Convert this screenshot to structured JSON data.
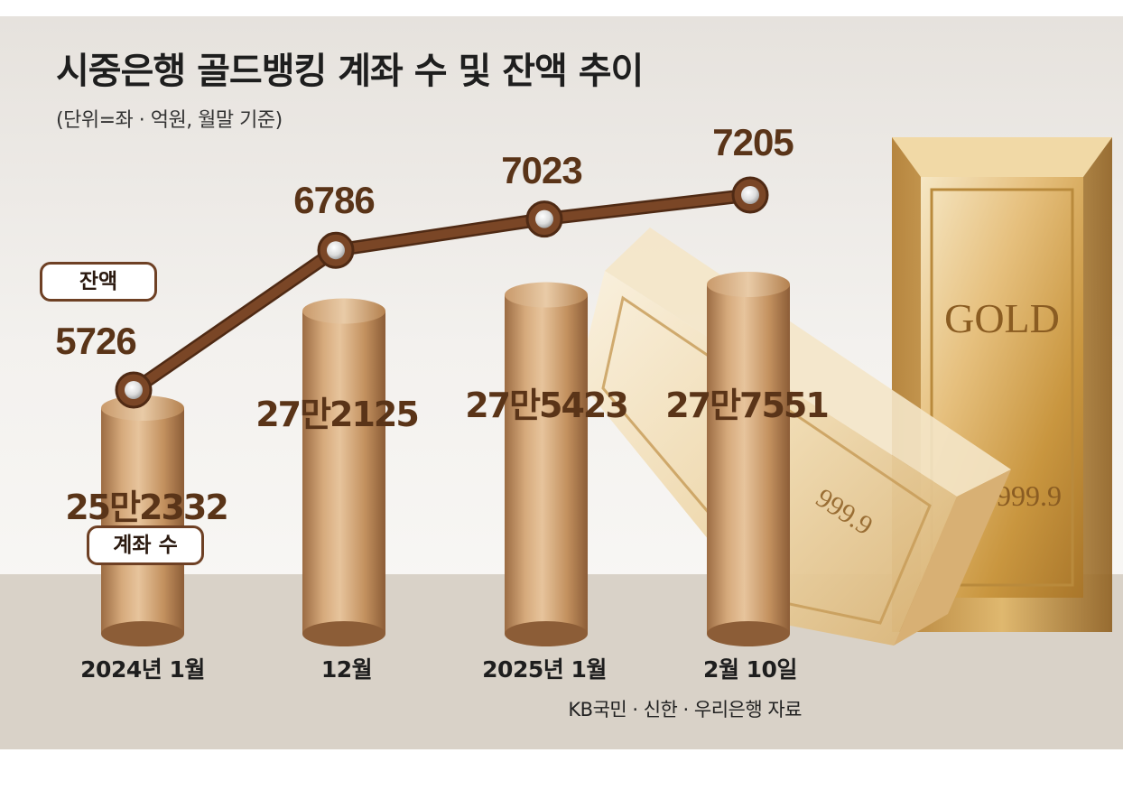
{
  "chart_data": {
    "type": "bar+line",
    "title": "시중은행 골드뱅킹 계좌 수 및 잔액 추이",
    "subtitle": "(단위=좌 · 억원, 월말 기준)",
    "categories": [
      "2024년 1월",
      "12월",
      "2025년 1월",
      "2월 10일"
    ],
    "series": [
      {
        "name": "계좌 수",
        "type": "bar",
        "values": [
          252332,
          272125,
          275423,
          277551
        ],
        "labels": [
          "25만2332",
          "27만2125",
          "27만5423",
          "27만7551"
        ]
      },
      {
        "name": "잔액",
        "type": "line",
        "values": [
          5726,
          6786,
          7023,
          7205
        ],
        "labels": [
          "5726",
          "6786",
          "7023",
          "7205"
        ]
      }
    ],
    "legend": [
      "잔액",
      "계좌 수"
    ],
    "source": "KB국민 · 신한 · 우리은행 자료",
    "grid": false,
    "colors": {
      "bar": "#c99a6b",
      "line": "#7a4626",
      "label": "#5a3418",
      "text": "#1e1e1e",
      "floor": "#d9d2c8"
    },
    "decoration": {
      "gold_bar_front": "999.9",
      "gold_bar_back_title": "GOLD",
      "gold_bar_back_purity": "999.9"
    }
  }
}
